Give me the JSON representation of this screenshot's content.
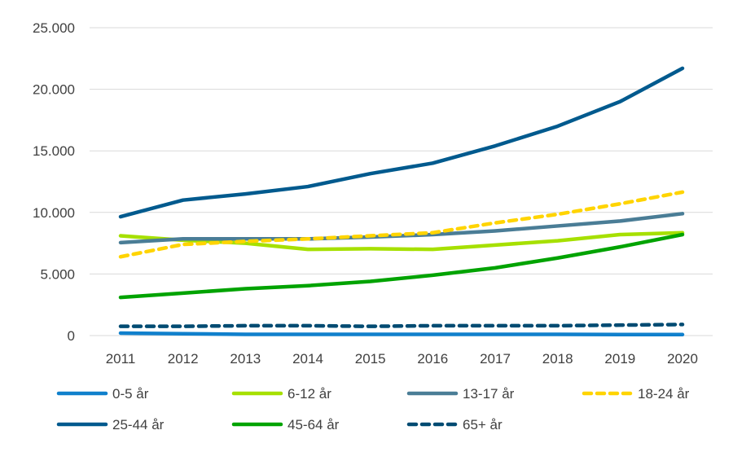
{
  "chart_data": {
    "type": "line",
    "x": [
      "2011",
      "2012",
      "2013",
      "2014",
      "2015",
      "2016",
      "2017",
      "2018",
      "2019",
      "2020"
    ],
    "ylim": [
      0,
      25000
    ],
    "yticks": [
      "0",
      "5.000",
      "10.000",
      "15.000",
      "20.000",
      "25.000"
    ],
    "grid": true,
    "legend_position": "bottom",
    "series": [
      {
        "name": "0-5 år",
        "color": "#1080cc",
        "dashed": false,
        "values": [
          200,
          150,
          100,
          100,
          100,
          100,
          100,
          100,
          80,
          80
        ]
      },
      {
        "name": "6-12 år",
        "color": "#a6e000",
        "dashed": false,
        "values": [
          8100,
          7750,
          7500,
          7000,
          7050,
          7000,
          7350,
          7700,
          8200,
          8350
        ]
      },
      {
        "name": "13-17 år",
        "color": "#4a7d96",
        "dashed": false,
        "values": [
          7550,
          7850,
          7850,
          7850,
          8000,
          8200,
          8500,
          8900,
          9300,
          9900
        ]
      },
      {
        "name": "18-24 år",
        "color": "#ffd400",
        "dashed": true,
        "values": [
          6400,
          7400,
          7650,
          7850,
          8100,
          8350,
          9150,
          9850,
          10700,
          11650
        ]
      },
      {
        "name": "25-44 år",
        "color": "#005a8e",
        "dashed": false,
        "values": [
          9650,
          11000,
          11500,
          12100,
          13150,
          14000,
          15400,
          17000,
          19000,
          21700
        ]
      },
      {
        "name": "45-64 år",
        "color": "#00a300",
        "dashed": false,
        "values": [
          3100,
          3450,
          3800,
          4050,
          4400,
          4900,
          5500,
          6300,
          7200,
          8200
        ]
      },
      {
        "name": "65+ år",
        "color": "#004b72",
        "dashed": true,
        "values": [
          750,
          750,
          800,
          800,
          750,
          800,
          800,
          800,
          850,
          900
        ]
      }
    ]
  }
}
